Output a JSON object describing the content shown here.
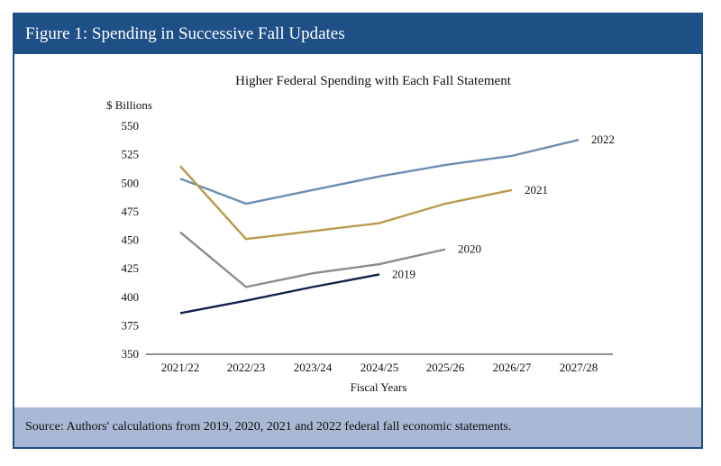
{
  "figure": {
    "title": "Figure 1: Spending in Successive Fall Updates",
    "source": "Source: Authors' calculations from 2019, 2020, 2021 and 2022 federal fall economic statements."
  },
  "chart_data": {
    "type": "line",
    "title": "Higher Federal Spending with Each Fall Statement",
    "xlabel": "Fiscal Years",
    "ylabel": "$ Billions",
    "ylim": [
      350,
      550
    ],
    "yticks": [
      350,
      375,
      400,
      425,
      450,
      475,
      500,
      525,
      550
    ],
    "categories": [
      "2021/22",
      "2022/23",
      "2023/24",
      "2024/25",
      "2025/26",
      "2026/27",
      "2027/28"
    ],
    "grid": false,
    "legend": "inline labels at line ends",
    "series": [
      {
        "name": "2022",
        "color": "#6e8cb3",
        "values": [
          504,
          482,
          494,
          506,
          516,
          524,
          538
        ]
      },
      {
        "name": "2021",
        "color": "#b89a4a",
        "values": [
          515,
          451,
          458,
          465,
          482,
          494,
          null
        ]
      },
      {
        "name": "2020",
        "color": "#8c8c8c",
        "values": [
          457,
          409,
          421,
          429,
          442,
          null,
          null
        ]
      },
      {
        "name": "2019",
        "color": "#14224a",
        "values": [
          386,
          397,
          409,
          420,
          null,
          null,
          null
        ]
      }
    ]
  }
}
